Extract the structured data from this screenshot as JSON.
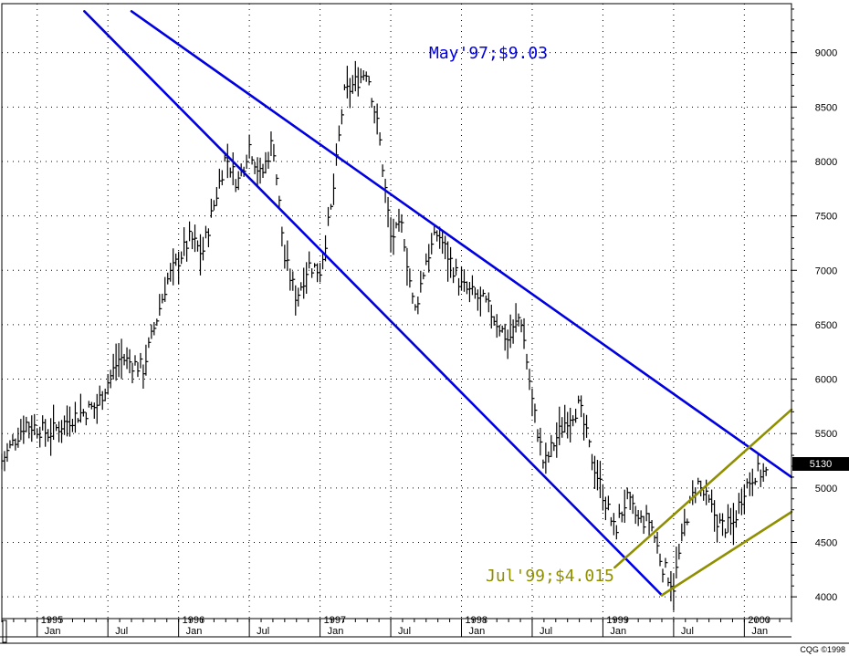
{
  "chart_data": {
    "type": "bar",
    "subtype": "ohlc-weekly",
    "y_axis": {
      "ticks": [
        "4000",
        "4500",
        "5000",
        "5500",
        "6000",
        "6500",
        "7000",
        "7500",
        "8000",
        "8500",
        "9000"
      ],
      "range": [
        3800,
        9450
      ],
      "position": "right"
    },
    "x_axis": {
      "years": [
        {
          "label": "1995",
          "date": "1995-01"
        },
        {
          "label": "1996",
          "date": "1996-01"
        },
        {
          "label": "1997",
          "date": "1997-01"
        },
        {
          "label": "1998",
          "date": "1998-01"
        },
        {
          "label": "1999",
          "date": "1999-01"
        },
        {
          "label": "2000",
          "date": "2000-01"
        }
      ],
      "months": [
        {
          "label": "Jan",
          "date": "1995-01"
        },
        {
          "label": "Jul",
          "date": "1995-07"
        },
        {
          "label": "Jan",
          "date": "1996-01"
        },
        {
          "label": "Jul",
          "date": "1996-07"
        },
        {
          "label": "Jan",
          "date": "1997-01"
        },
        {
          "label": "Jul",
          "date": "1997-07"
        },
        {
          "label": "Jan",
          "date": "1998-01"
        },
        {
          "label": "Jul",
          "date": "1998-07"
        },
        {
          "label": "Jan",
          "date": "1999-01"
        },
        {
          "label": "Jul",
          "date": "1999-07"
        },
        {
          "label": "Jan",
          "date": "2000-01"
        }
      ],
      "range": [
        "1994-10",
        "2000-05"
      ]
    },
    "grid": true,
    "last_price": "5130",
    "price_path": [
      [
        "1994-10",
        5250
      ],
      [
        "1994-12",
        5600
      ],
      [
        "1995-02",
        5500
      ],
      [
        "1995-04",
        5650
      ],
      [
        "1995-06",
        5750
      ],
      [
        "1995-08",
        6200
      ],
      [
        "1995-10",
        6100
      ],
      [
        "1995-12",
        6900
      ],
      [
        "1996-02",
        7300
      ],
      [
        "1996-03",
        7150
      ],
      [
        "1996-05",
        8050
      ],
      [
        "1996-06",
        7800
      ],
      [
        "1996-07",
        8150
      ],
      [
        "1996-08",
        7850
      ],
      [
        "1996-09",
        8200
      ],
      [
        "1996-10",
        7100
      ],
      [
        "1996-11",
        6750
      ],
      [
        "1996-12",
        7050
      ],
      [
        "1997-01",
        7000
      ],
      [
        "1997-02",
        7600
      ],
      [
        "1997-03",
        8600
      ],
      [
        "1997-05",
        8850
      ],
      [
        "1997-06",
        8250
      ],
      [
        "1997-07",
        7300
      ],
      [
        "1997-08",
        7400
      ],
      [
        "1997-09",
        6600
      ],
      [
        "1997-10",
        7100
      ],
      [
        "1997-11",
        7350
      ],
      [
        "1998-01",
        6850
      ],
      [
        "1998-03",
        6700
      ],
      [
        "1998-05",
        6350
      ],
      [
        "1998-06",
        6600
      ],
      [
        "1998-07",
        5800
      ],
      [
        "1998-08",
        5200
      ],
      [
        "1998-09",
        5450
      ],
      [
        "1998-10",
        5650
      ],
      [
        "1998-11",
        5750
      ],
      [
        "1998-12",
        5300
      ],
      [
        "1999-01",
        4950
      ],
      [
        "1999-02",
        4600
      ],
      [
        "1999-03",
        4900
      ],
      [
        "1999-04",
        4700
      ],
      [
        "1999-05",
        4700
      ],
      [
        "1999-06",
        4300
      ],
      [
        "1999-07",
        4100
      ],
      [
        "1999-08",
        4700
      ],
      [
        "1999-09",
        5050
      ],
      [
        "1999-10",
        4850
      ],
      [
        "1999-11",
        4650
      ],
      [
        "1999-12",
        4650
      ],
      [
        "2000-01",
        5000
      ],
      [
        "2000-02",
        5150
      ],
      [
        "2000-03",
        5130
      ]
    ],
    "trendlines": [
      {
        "name": "channel-upper",
        "color": "#0000e0",
        "from": [
          "1995-09",
          9380
        ],
        "to": [
          "2000-05",
          5100
        ]
      },
      {
        "name": "channel-lower",
        "color": "#0000e0",
        "from": [
          "1995-05",
          9380
        ],
        "to": [
          "1999-06",
          4015
        ]
      },
      {
        "name": "uptrend-upper",
        "color": "#8f8f00",
        "from": [
          "1999-02",
          4270
        ],
        "to": [
          "2000-05",
          5720
        ]
      },
      {
        "name": "uptrend-lower",
        "color": "#8f8f00",
        "from": [
          "1999-06",
          4015
        ],
        "to": [
          "2000-05",
          4780
        ]
      }
    ],
    "annotations": [
      {
        "text": "May'97;$9.03",
        "color": "#0000e0"
      },
      {
        "text": "Jul'99;$4.015",
        "color": "#8f8f00"
      }
    ]
  },
  "credit": "CQG ©1998",
  "colors": {
    "bars": "#000000",
    "grid": "#000000",
    "channel": "#0000e0",
    "uptrend": "#8f8f00",
    "badge": "#000000"
  }
}
